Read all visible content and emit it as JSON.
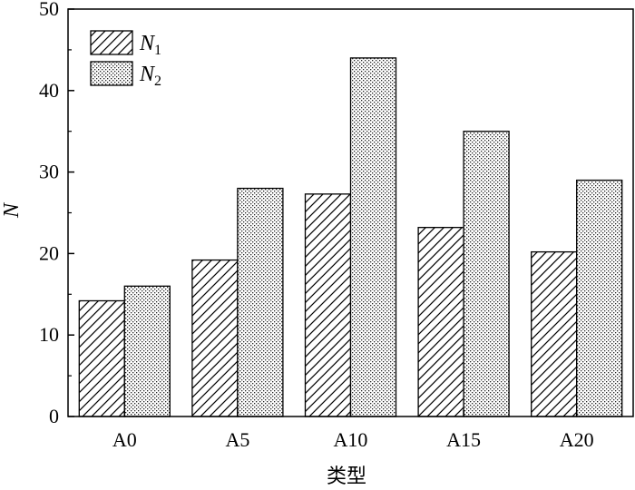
{
  "chart_data": {
    "type": "bar",
    "categories": [
      "A0",
      "A5",
      "A10",
      "A15",
      "A20"
    ],
    "series": [
      {
        "name": "N1",
        "name_main": "N",
        "name_sub": "1",
        "pattern": "diagonal-hatch",
        "values": [
          14.2,
          19.2,
          27.3,
          23.2,
          20.2
        ]
      },
      {
        "name": "N2",
        "name_main": "N",
        "name_sub": "2",
        "pattern": "dotted-vertical",
        "values": [
          16,
          28,
          44,
          35,
          29
        ]
      }
    ],
    "xlabel": "类型",
    "ylabel": "N",
    "ylim": [
      0,
      50
    ],
    "yticks": [
      0,
      10,
      20,
      30,
      40,
      50
    ],
    "legend_position": "top-left",
    "grid": false
  }
}
